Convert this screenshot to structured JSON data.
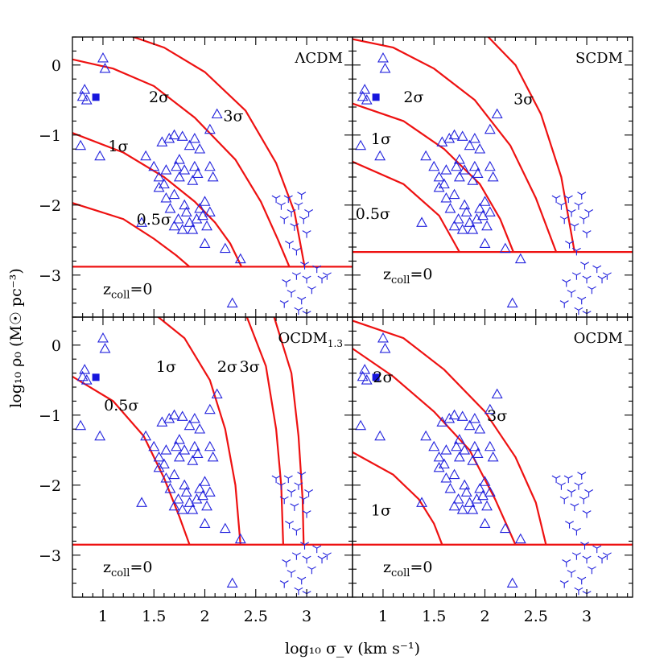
{
  "figure": {
    "xlabel": "log₁₀ σ_v (km s⁻¹)",
    "ylabel": "log₁₀ ρ₀ (M☉ pc⁻³)"
  },
  "colors": {
    "curves": "#ee1111",
    "markers": "#2222dd"
  },
  "chart_data": {
    "type": "scatter",
    "xlim": [
      0.7,
      3.45
    ],
    "ylim": [
      -3.6,
      0.4
    ],
    "x_ticks": [
      1,
      1.5,
      2,
      2.5,
      3
    ],
    "x_tick_labels": [
      "1",
      "1.5",
      "2",
      "2.5",
      "3"
    ],
    "y_ticks": [
      0,
      -1,
      -2,
      -3
    ],
    "y_tick_labels": [
      "0",
      "−1",
      "−2",
      "−3"
    ],
    "grid": false,
    "legend": "none",
    "points": {
      "triangles": [
        [
          0.8,
          -0.45
        ],
        [
          0.82,
          -0.35
        ],
        [
          0.84,
          -0.5
        ],
        [
          0.78,
          -1.15
        ],
        [
          1.0,
          0.1
        ],
        [
          1.02,
          -0.05
        ],
        [
          0.97,
          -1.3
        ],
        [
          1.38,
          -2.25
        ],
        [
          1.42,
          -1.3
        ],
        [
          1.5,
          -1.45
        ],
        [
          1.55,
          -1.6
        ],
        [
          1.55,
          -1.75
        ],
        [
          1.6,
          -1.7
        ],
        [
          1.62,
          -1.5
        ],
        [
          1.58,
          -1.1
        ],
        [
          1.65,
          -1.05
        ],
        [
          1.7,
          -1.0
        ],
        [
          1.62,
          -1.9
        ],
        [
          1.66,
          -2.05
        ],
        [
          1.7,
          -1.85
        ],
        [
          1.72,
          -1.45
        ],
        [
          1.75,
          -1.35
        ],
        [
          1.75,
          -1.6
        ],
        [
          1.8,
          -1.5
        ],
        [
          1.85,
          -1.15
        ],
        [
          1.78,
          -1.02
        ],
        [
          1.9,
          -1.05
        ],
        [
          1.95,
          -1.2
        ],
        [
          1.9,
          -1.45
        ],
        [
          1.88,
          -1.65
        ],
        [
          1.93,
          -1.55
        ],
        [
          1.7,
          -2.3
        ],
        [
          1.74,
          -2.2
        ],
        [
          1.78,
          -2.35
        ],
        [
          1.82,
          -2.1
        ],
        [
          1.85,
          -2.25
        ],
        [
          1.88,
          -2.35
        ],
        [
          1.92,
          -2.2
        ],
        [
          1.95,
          -2.05
        ],
        [
          1.98,
          -2.15
        ],
        [
          2.0,
          -1.95
        ],
        [
          2.02,
          -2.3
        ],
        [
          2.05,
          -1.45
        ],
        [
          2.08,
          -1.6
        ],
        [
          2.05,
          -0.92
        ],
        [
          2.12,
          -0.7
        ],
        [
          2.0,
          -2.55
        ],
        [
          2.2,
          -2.62
        ],
        [
          2.35,
          -2.77
        ],
        [
          2.27,
          -3.4
        ],
        [
          2.05,
          -2.1
        ],
        [
          1.8,
          -2.0
        ]
      ],
      "stars": [
        [
          2.7,
          -1.9
        ],
        [
          2.75,
          -2.0
        ],
        [
          2.78,
          -2.2
        ],
        [
          2.82,
          -1.9
        ],
        [
          2.85,
          -2.1
        ],
        [
          2.88,
          -2.3
        ],
        [
          2.92,
          -2.0
        ],
        [
          2.95,
          -1.85
        ],
        [
          2.97,
          -2.2
        ],
        [
          3.0,
          -2.4
        ],
        [
          3.02,
          -2.1
        ],
        [
          2.83,
          -2.55
        ],
        [
          2.9,
          -2.65
        ],
        [
          2.98,
          -2.85
        ],
        [
          2.8,
          -3.1
        ],
        [
          2.85,
          -3.25
        ],
        [
          2.9,
          -3.0
        ],
        [
          2.95,
          -3.35
        ],
        [
          3.0,
          -3.05
        ],
        [
          3.05,
          -3.2
        ],
        [
          3.1,
          -2.9
        ],
        [
          3.15,
          -3.05
        ],
        [
          2.78,
          -3.4
        ],
        [
          2.92,
          -3.5
        ],
        [
          3.0,
          -3.55
        ],
        [
          3.2,
          -3.0
        ]
      ],
      "squares": [
        [
          0.93,
          -0.46
        ]
      ]
    },
    "panels": [
      {
        "name": "ΛCDM",
        "label_main": "ΛCDM",
        "label_sub": "",
        "zcoll_y": -2.88,
        "curves": [
          {
            "label": "0.5σ",
            "x0": 1.5,
            "y0": -2.2,
            "points": [
              [
                0.7,
                -1.97
              ],
              [
                1.2,
                -2.2
              ],
              [
                1.5,
                -2.48
              ],
              [
                1.72,
                -2.72
              ],
              [
                1.85,
                -2.88
              ]
            ]
          },
          {
            "label": "1σ",
            "x0": 1.15,
            "y0": -1.15,
            "points": [
              [
                0.7,
                -0.97
              ],
              [
                1.2,
                -1.25
              ],
              [
                1.6,
                -1.6
              ],
              [
                1.9,
                -1.95
              ],
              [
                2.1,
                -2.25
              ],
              [
                2.25,
                -2.55
              ],
              [
                2.36,
                -2.88
              ]
            ]
          },
          {
            "label": "2σ",
            "x0": 1.55,
            "y0": -0.45,
            "points": [
              [
                0.7,
                0.08
              ],
              [
                1.1,
                -0.05
              ],
              [
                1.5,
                -0.3
              ],
              [
                1.9,
                -0.75
              ],
              [
                2.3,
                -1.35
              ],
              [
                2.55,
                -1.95
              ],
              [
                2.72,
                -2.5
              ],
              [
                2.83,
                -2.88
              ]
            ]
          },
          {
            "label": "3σ",
            "x0": 2.28,
            "y0": -0.72,
            "points": [
              [
                1.2,
                0.45
              ],
              [
                1.6,
                0.25
              ],
              [
                2.0,
                -0.1
              ],
              [
                2.4,
                -0.65
              ],
              [
                2.7,
                -1.4
              ],
              [
                2.88,
                -2.1
              ],
              [
                2.98,
                -2.88
              ]
            ]
          }
        ],
        "sigma_text": [
          "0.5σ",
          "1σ",
          "2σ",
          "3σ"
        ]
      },
      {
        "name": "SCDM",
        "label_main": "SCDM",
        "label_sub": "",
        "zcoll_y": -2.67,
        "curves": [
          {
            "label": "0.5σ",
            "x0": 0.9,
            "y0": -2.12,
            "points": [
              [
                0.7,
                -1.38
              ],
              [
                1.2,
                -1.7
              ],
              [
                1.55,
                -2.15
              ],
              [
                1.75,
                -2.67
              ]
            ]
          },
          {
            "label": "1σ",
            "x0": 0.98,
            "y0": -1.05,
            "points": [
              [
                0.7,
                -0.55
              ],
              [
                1.2,
                -0.8
              ],
              [
                1.6,
                -1.2
              ],
              [
                1.95,
                -1.7
              ],
              [
                2.15,
                -2.2
              ],
              [
                2.28,
                -2.67
              ]
            ]
          },
          {
            "label": "2σ",
            "x0": 1.3,
            "y0": -0.45,
            "points": [
              [
                0.7,
                0.37
              ],
              [
                1.1,
                0.25
              ],
              [
                1.5,
                -0.05
              ],
              [
                1.9,
                -0.5
              ],
              [
                2.25,
                -1.15
              ],
              [
                2.5,
                -1.9
              ],
              [
                2.7,
                -2.67
              ]
            ]
          },
          {
            "label": "3σ",
            "x0": 2.38,
            "y0": -0.48,
            "points": [
              [
                2.0,
                0.45
              ],
              [
                2.3,
                0.0
              ],
              [
                2.55,
                -0.7
              ],
              [
                2.75,
                -1.6
              ],
              [
                2.88,
                -2.67
              ]
            ]
          }
        ],
        "sigma_text": [
          "0.5σ",
          "1σ",
          "2σ",
          "3σ"
        ]
      },
      {
        "name": "OCDM1.3",
        "label_main": "OCDM",
        "label_sub": "1.3",
        "zcoll_y": -2.85,
        "curves": [
          {
            "label": "0.5σ",
            "x0": 1.18,
            "y0": -0.85,
            "points": [
              [
                0.7,
                -0.45
              ],
              [
                1.1,
                -0.8
              ],
              [
                1.4,
                -1.3
              ],
              [
                1.6,
                -1.9
              ],
              [
                1.75,
                -2.45
              ],
              [
                1.85,
                -2.85
              ]
            ]
          },
          {
            "label": "1σ",
            "x0": 1.62,
            "y0": -0.3,
            "points": [
              [
                1.5,
                0.45
              ],
              [
                1.8,
                0.1
              ],
              [
                2.05,
                -0.5
              ],
              [
                2.2,
                -1.2
              ],
              [
                2.3,
                -2.0
              ],
              [
                2.35,
                -2.85
              ]
            ]
          },
          {
            "label": "2σ",
            "x0": 2.22,
            "y0": -0.3,
            "points": [
              [
                2.4,
                0.45
              ],
              [
                2.6,
                -0.3
              ],
              [
                2.7,
                -1.2
              ],
              [
                2.75,
                -2.0
              ],
              [
                2.77,
                -2.85
              ]
            ]
          },
          {
            "label": "3σ",
            "x0": 2.44,
            "y0": -0.3,
            "points": [
              [
                2.67,
                0.45
              ],
              [
                2.85,
                -0.4
              ],
              [
                2.92,
                -1.3
              ],
              [
                2.96,
                -2.2
              ],
              [
                2.97,
                -2.85
              ]
            ]
          }
        ],
        "sigma_text": [
          "0.5σ",
          "1σ",
          "2σ",
          "3σ"
        ]
      },
      {
        "name": "OCDM",
        "label_main": "OCDM",
        "label_sub": "",
        "zcoll_y": -2.85,
        "curves": [
          {
            "label": "1σ",
            "x0": 0.98,
            "y0": -2.35,
            "points": [
              [
                0.7,
                -1.53
              ],
              [
                1.1,
                -1.85
              ],
              [
                1.35,
                -2.2
              ],
              [
                1.5,
                -2.55
              ],
              [
                1.58,
                -2.85
              ]
            ]
          },
          {
            "label": "2σ",
            "x0": 1.0,
            "y0": -0.45,
            "points": [
              [
                0.7,
                -0.05
              ],
              [
                1.1,
                -0.45
              ],
              [
                1.5,
                -0.95
              ],
              [
                1.85,
                -1.5
              ],
              [
                2.1,
                -2.2
              ],
              [
                2.3,
                -2.85
              ]
            ]
          },
          {
            "label": "3σ",
            "x0": 2.12,
            "y0": -1.0,
            "points": [
              [
                0.7,
                0.35
              ],
              [
                1.2,
                0.1
              ],
              [
                1.6,
                -0.35
              ],
              [
                2.0,
                -0.95
              ],
              [
                2.3,
                -1.6
              ],
              [
                2.5,
                -2.25
              ],
              [
                2.6,
                -2.85
              ]
            ]
          }
        ],
        "sigma_text": [
          "1σ",
          "2σ",
          "3σ"
        ]
      }
    ]
  }
}
